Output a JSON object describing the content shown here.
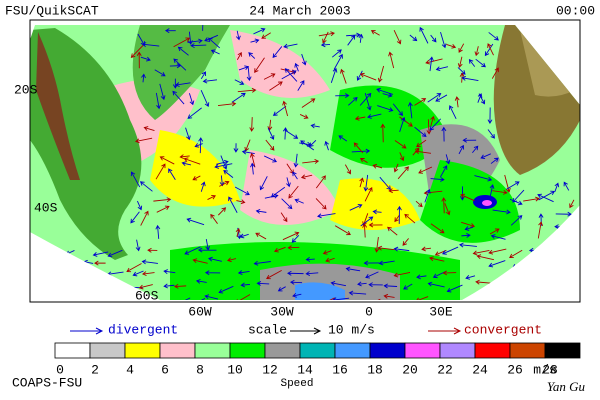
{
  "header": {
    "left": "FSU/QuikSCAT",
    "center": "24 March 2003",
    "right": "00:00"
  },
  "map": {
    "lat_labels": [
      "20S",
      "40S",
      "60S"
    ],
    "lon_labels": [
      "60W",
      "30W",
      "0",
      "30E"
    ]
  },
  "legend": {
    "divergent": "divergent",
    "scale": "scale",
    "scale_value": "10 m/s",
    "convergent": "convergent"
  },
  "colorbar": {
    "ticks": [
      0,
      2,
      4,
      6,
      8,
      10,
      12,
      14,
      16,
      18,
      20,
      22,
      24,
      26,
      28
    ],
    "unit": "m/s",
    "title": "Speed",
    "colors": [
      "#ffffff",
      "#c8c8c8",
      "#ffff00",
      "#ffc0cb",
      "#99ff99",
      "#00ee00",
      "#999999",
      "#00b4b4",
      "#4499ff",
      "#0000cc",
      "#ff55ff",
      "#b088ff",
      "#ff0000",
      "#cc4400",
      "#000000"
    ]
  },
  "footer": {
    "left": "COAPS-FSU",
    "right": "Yan Gu"
  }
}
